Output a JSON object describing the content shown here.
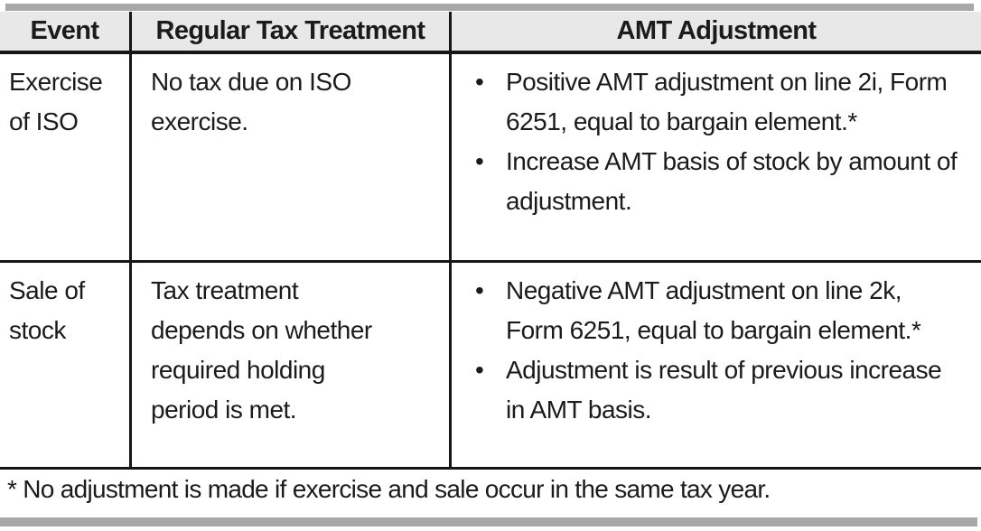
{
  "ui": {
    "bullet_glyph": "•"
  },
  "colors": {
    "header_background": "#e8e8e8",
    "rule": "#161616",
    "divider_bar": "#a8a8a8",
    "text": "#1b1b1b"
  },
  "table": {
    "columns": [
      "Event",
      "Regular Tax Treatment",
      "AMT Adjustment"
    ],
    "rows": [
      {
        "event": "Exercise of ISO",
        "regular_tax_treatment": "No tax due on ISO exercise.",
        "amt_adjustment": [
          "Positive AMT adjustment on line 2i, Form 6251, equal to bargain element.*",
          "Increase AMT basis of stock by amount of adjustment."
        ]
      },
      {
        "event": "Sale of stock",
        "regular_tax_treatment": "Tax treatment depends on whether required holding period is met.",
        "amt_adjustment": [
          "Negative AMT adjustment on line 2k, Form 6251, equal to bargain element.*",
          "Adjustment is result of previous increase in AMT basis."
        ]
      }
    ],
    "footnote": "* No adjustment is made if exercise and sale occur in the same tax year."
  }
}
